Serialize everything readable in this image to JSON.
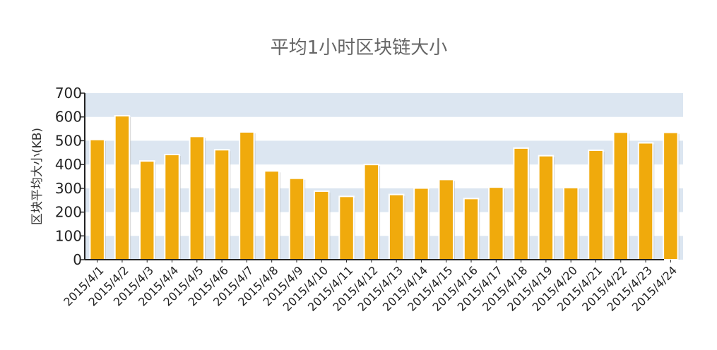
{
  "chart_data": {
    "type": "bar",
    "title": "平均1小时区块链大小",
    "xlabel": "",
    "ylabel": "区块平均大小(KB)",
    "ylim": [
      0,
      700
    ],
    "yticks": [
      0,
      100,
      200,
      300,
      400,
      500,
      600,
      700
    ],
    "categories": [
      "2015/4/1",
      "2015/4/2",
      "2015/4/3",
      "2015/4/4",
      "2015/4/5",
      "2015/4/6",
      "2015/4/7",
      "2015/4/8",
      "2015/4/9",
      "2015/4/10",
      "2015/4/11",
      "2015/4/12",
      "2015/4/13",
      "2015/4/14",
      "2015/4/15",
      "2015/4/16",
      "2015/4/17",
      "2015/4/18",
      "2015/4/19",
      "2015/4/20",
      "2015/4/21",
      "2015/4/22",
      "2015/4/23",
      "2015/4/24"
    ],
    "values": [
      505,
      605,
      415,
      442,
      518,
      462,
      537,
      373,
      342,
      288,
      266,
      400,
      274,
      301,
      337,
      257,
      305,
      469,
      437,
      303,
      460,
      536,
      491,
      535
    ],
    "grid": "alternating horizontal bands",
    "legend": "none",
    "colors": {
      "bar": "#F0AA0C",
      "band": "#DCE6F1",
      "axis": "#222222"
    }
  }
}
